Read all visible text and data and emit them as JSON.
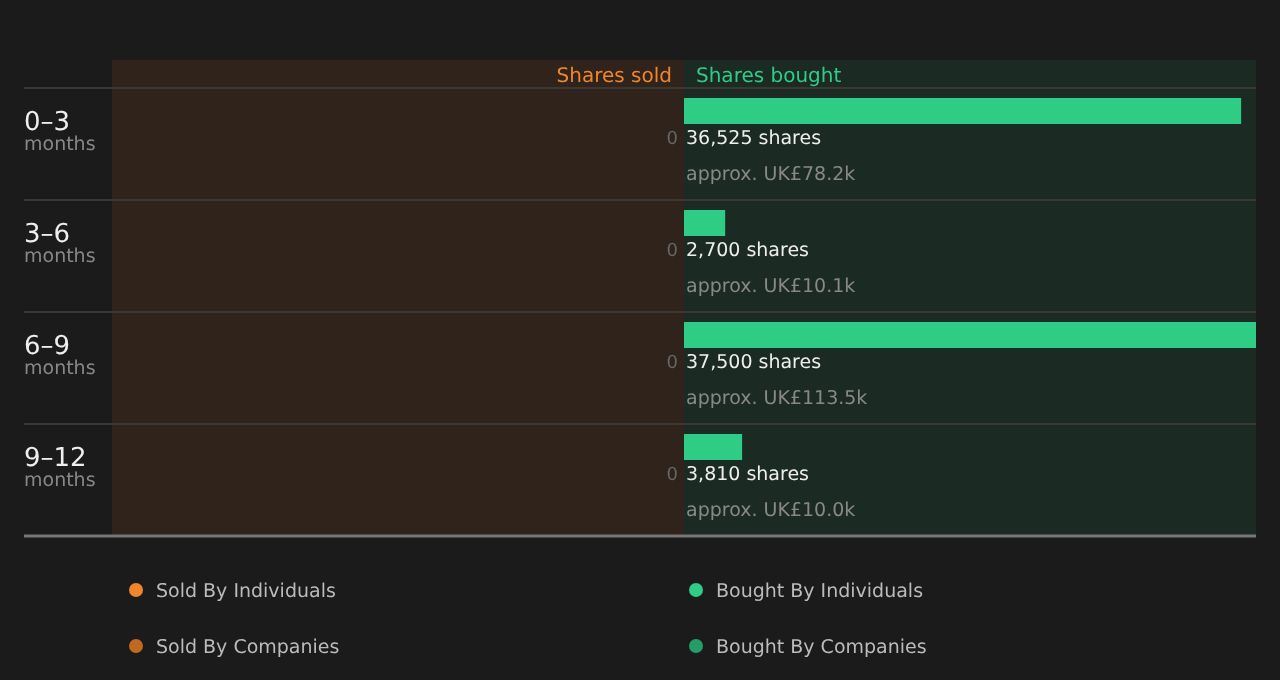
{
  "chart_data": {
    "type": "bar",
    "orientation": "horizontal",
    "categories": [
      "0–3 months",
      "3–6 months",
      "6–9 months",
      "9–12 months"
    ],
    "xlim": [
      -37500,
      37500
    ],
    "tick_labels": "y",
    "legend": "bottom",
    "series": [
      {
        "name": "Sold By Individuals",
        "color": "#f0862c",
        "values": [
          0,
          0,
          0,
          0
        ],
        "value_labels": [
          "0",
          "0",
          "0",
          "0"
        ]
      },
      {
        "name": "Sold By Companies",
        "color": "#c2681f",
        "values": [
          0,
          0,
          0,
          0
        ]
      },
      {
        "name": "Bought By Individuals",
        "color": "#2ecc85",
        "values": [
          36525,
          2700,
          37500,
          3810
        ],
        "value_labels": [
          "36,525 shares",
          "2,700 shares",
          "37,500 shares",
          "3,810 shares"
        ]
      },
      {
        "name": "Bought By Companies",
        "color": "#239e68",
        "values": [
          0,
          0,
          0,
          0
        ]
      }
    ],
    "bands": [
      {
        "axis": "x",
        "from": -37500,
        "to": 0,
        "label": "Shares sold",
        "color": "#30231c"
      },
      {
        "axis": "x",
        "from": 0,
        "to": 37500,
        "label": "Shares bought",
        "color": "#1c2a24"
      }
    ],
    "annotations": [
      "approx. UK£78.2k",
      "approx. UK£10.1k",
      "approx. UK£113.5k",
      "approx. UK£10.0k"
    ]
  }
}
